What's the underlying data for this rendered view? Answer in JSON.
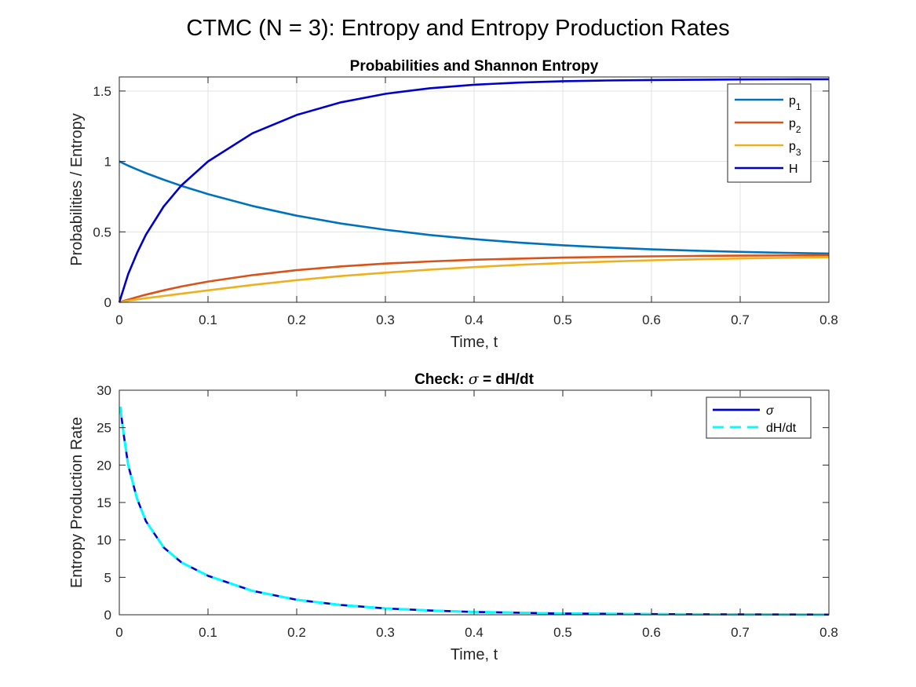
{
  "figure": {
    "suptitle": "CTMC (N = 3): Entropy and Entropy Production Rates"
  },
  "chart_data": [
    {
      "type": "line",
      "title": "Probabilities and Shannon Entropy",
      "xlabel": "Time, t",
      "ylabel": "Probabilities / Entropy",
      "xlim": [
        0,
        0.8
      ],
      "ylim": [
        0,
        1.6
      ],
      "xticks": [
        "0",
        "0.1",
        "0.2",
        "0.3",
        "0.4",
        "0.5",
        "0.6",
        "0.7",
        "0.8"
      ],
      "yticks": [
        "0",
        "0.5",
        "1",
        "1.5"
      ],
      "grid": true,
      "legend_position": "top-right",
      "x": [
        0,
        0.01,
        0.02,
        0.03,
        0.05,
        0.07,
        0.1,
        0.15,
        0.2,
        0.25,
        0.3,
        0.35,
        0.4,
        0.45,
        0.5,
        0.55,
        0.6,
        0.65,
        0.7,
        0.75,
        0.8
      ],
      "series": [
        {
          "name": "p",
          "sub": "1",
          "color": "#0072BD",
          "values": [
            1.0,
            0.97,
            0.943,
            0.917,
            0.87,
            0.827,
            0.768,
            0.684,
            0.615,
            0.559,
            0.515,
            0.478,
            0.448,
            0.424,
            0.405,
            0.389,
            0.376,
            0.366,
            0.358,
            0.351,
            0.346
          ]
        },
        {
          "name": "p",
          "sub": "2",
          "color": "#D95319",
          "values": [
            0,
            0.019,
            0.037,
            0.054,
            0.085,
            0.112,
            0.147,
            0.193,
            0.228,
            0.255,
            0.275,
            0.29,
            0.302,
            0.31,
            0.317,
            0.322,
            0.326,
            0.329,
            0.331,
            0.333,
            0.334
          ]
        },
        {
          "name": "p",
          "sub": "3",
          "color": "#EDB120",
          "values": [
            0,
            0.011,
            0.02,
            0.029,
            0.045,
            0.061,
            0.085,
            0.123,
            0.157,
            0.186,
            0.21,
            0.232,
            0.25,
            0.266,
            0.278,
            0.289,
            0.298,
            0.305,
            0.311,
            0.316,
            0.32
          ]
        },
        {
          "name": "H",
          "sub": "",
          "color": "#0000CD",
          "values": [
            0,
            0.2,
            0.35,
            0.48,
            0.68,
            0.83,
            1.0,
            1.2,
            1.33,
            1.42,
            1.48,
            1.52,
            1.545,
            1.56,
            1.57,
            1.575,
            1.578,
            1.58,
            1.582,
            1.583,
            1.584
          ]
        }
      ]
    },
    {
      "type": "line",
      "title_prefix": "Check: ",
      "title_symbol": "σ",
      "title_suffix": " = dH/dt",
      "xlabel": "Time, t",
      "ylabel": "Entropy Production Rate",
      "xlim": [
        0,
        0.8
      ],
      "ylim": [
        0,
        30
      ],
      "xticks": [
        "0",
        "0.1",
        "0.2",
        "0.3",
        "0.4",
        "0.5",
        "0.6",
        "0.7",
        "0.8"
      ],
      "yticks": [
        "0",
        "5",
        "10",
        "15",
        "20",
        "25",
        "30"
      ],
      "grid": false,
      "legend_position": "top-right",
      "x": [
        0.001,
        0.005,
        0.01,
        0.02,
        0.03,
        0.05,
        0.07,
        0.1,
        0.15,
        0.2,
        0.25,
        0.3,
        0.35,
        0.4,
        0.5,
        0.6,
        0.7,
        0.8
      ],
      "series": [
        {
          "name": "σ",
          "color": "#0000CD",
          "dash": "solid",
          "values": [
            27.8,
            24.0,
            20.0,
            15.5,
            12.5,
            9.0,
            7.0,
            5.2,
            3.2,
            2.0,
            1.3,
            0.85,
            0.57,
            0.38,
            0.17,
            0.08,
            0.04,
            0.02
          ]
        },
        {
          "name": "dH/dt",
          "color": "#00FFFF",
          "dash": "dashed",
          "values": [
            27.8,
            24.0,
            20.0,
            15.5,
            12.5,
            9.0,
            7.0,
            5.2,
            3.2,
            2.0,
            1.3,
            0.85,
            0.57,
            0.38,
            0.17,
            0.08,
            0.04,
            0.02
          ]
        }
      ]
    }
  ]
}
